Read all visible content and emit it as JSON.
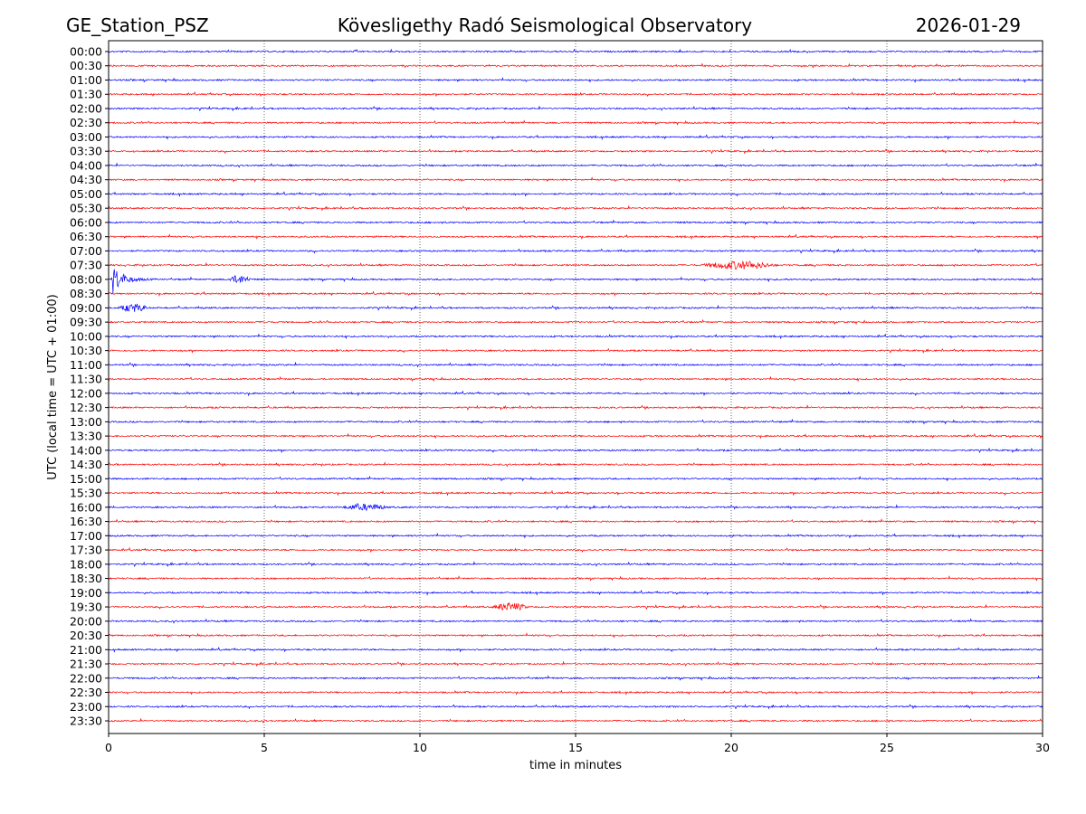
{
  "header": {
    "station": "GE_Station_PSZ",
    "observatory": "Kövesligethy Radó Seismological Observatory",
    "date": "2026-01-29"
  },
  "chart_data": {
    "type": "line",
    "title": "Kövesligethy Radó Seismological Observatory",
    "xlabel": "time in minutes",
    "ylabel": "UTC (local time = UTC + 01:00)",
    "xlim": [
      0,
      30
    ],
    "xticks": [
      "0",
      "5",
      "10",
      "15",
      "20",
      "25",
      "30"
    ],
    "grid": "vertical dotted at x ticks",
    "row_labels": [
      "00:00",
      "00:30",
      "01:00",
      "01:30",
      "02:00",
      "02:30",
      "03:00",
      "03:30",
      "04:00",
      "04:30",
      "05:00",
      "05:30",
      "06:00",
      "06:30",
      "07:00",
      "07:30",
      "08:00",
      "08:30",
      "09:00",
      "09:30",
      "10:00",
      "10:30",
      "11:00",
      "11:30",
      "12:00",
      "12:30",
      "13:00",
      "13:30",
      "14:00",
      "14:30",
      "15:00",
      "15:30",
      "16:00",
      "16:30",
      "17:00",
      "17:30",
      "18:00",
      "18:30",
      "19:00",
      "19:30",
      "20:00",
      "20:30",
      "21:00",
      "21:30",
      "22:00",
      "22:30",
      "23:00",
      "23:30"
    ],
    "row_colors": [
      "#0000ff",
      "#ff0000"
    ],
    "events": [
      {
        "row": "07:30",
        "start_min": 19.0,
        "end_min": 21.5,
        "amplitude": 4
      },
      {
        "row": "08:00",
        "start_min": 0.1,
        "end_min": 1.6,
        "amplitude": 18
      },
      {
        "row": "08:00",
        "start_min": 3.8,
        "end_min": 4.6,
        "amplitude": 4
      },
      {
        "row": "09:00",
        "start_min": 0.3,
        "end_min": 1.3,
        "amplitude": 4
      },
      {
        "row": "16:00",
        "start_min": 7.5,
        "end_min": 9.0,
        "amplitude": 3
      },
      {
        "row": "19:30",
        "start_min": 12.3,
        "end_min": 13.5,
        "amplitude": 4
      }
    ]
  }
}
